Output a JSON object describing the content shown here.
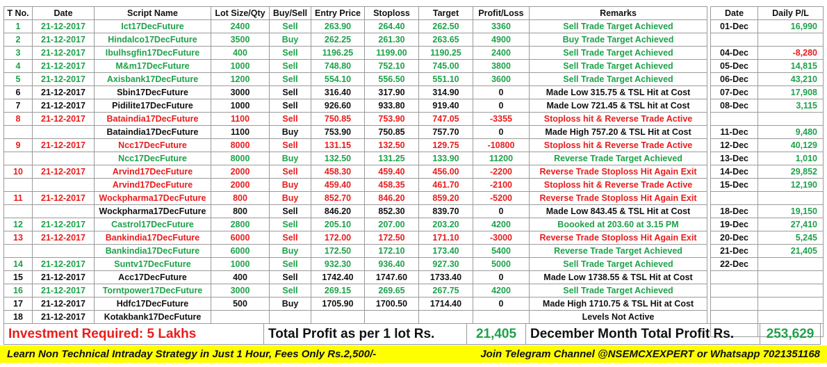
{
  "main_headers": [
    "T No.",
    "Date",
    "Script Name",
    "Lot Size/Qty",
    "Buy/Sell",
    "Entry Price",
    "Stoploss",
    "Target",
    "Profit/Loss",
    "Remarks"
  ],
  "side_headers": [
    "Date",
    "Daily P/L"
  ],
  "colors": {
    "green": "#1ea24a",
    "red": "#ea1c1c",
    "black": "#111111",
    "banner": "#ffff00"
  },
  "rows": [
    {
      "c": "g",
      "t": "1",
      "d": "21-12-2017",
      "s": "Ict17DecFuture",
      "q": "2400",
      "bs": "Sell",
      "e": "263.90",
      "sl": "264.40",
      "tg": "262.50",
      "pl": "3360",
      "rm": "Sell Trade Target Achieved"
    },
    {
      "c": "g",
      "t": "2",
      "d": "21-12-2017",
      "s": "Hindalco17DecFuture",
      "q": "3500",
      "bs": "Buy",
      "e": "262.25",
      "sl": "261.30",
      "tg": "263.65",
      "pl": "4900",
      "rm": "Buy Trade Target Achieved"
    },
    {
      "c": "g",
      "t": "3",
      "d": "21-12-2017",
      "s": "Ibulhsgfin17DecFuture",
      "q": "400",
      "bs": "Sell",
      "e": "1196.25",
      "sl": "1199.00",
      "tg": "1190.25",
      "pl": "2400",
      "rm": "Sell Trade Target Achieved"
    },
    {
      "c": "g",
      "t": "4",
      "d": "21-12-2017",
      "s": "M&m17DecFuture",
      "q": "1000",
      "bs": "Sell",
      "e": "748.80",
      "sl": "752.10",
      "tg": "745.00",
      "pl": "3800",
      "rm": "Sell Trade Target Achieved"
    },
    {
      "c": "g",
      "t": "5",
      "d": "21-12-2017",
      "s": "Axisbank17DecFuture",
      "q": "1200",
      "bs": "Sell",
      "e": "554.10",
      "sl": "556.50",
      "tg": "551.10",
      "pl": "3600",
      "rm": "Sell Trade Target Achieved"
    },
    {
      "c": "k",
      "t": "6",
      "d": "21-12-2017",
      "s": "Sbin17DecFuture",
      "q": "3000",
      "bs": "Sell",
      "e": "316.40",
      "sl": "317.90",
      "tg": "314.90",
      "pl": "0",
      "rm": "Made Low 315.75 & TSL Hit at Cost"
    },
    {
      "c": "k",
      "t": "7",
      "d": "21-12-2017",
      "s": "Pidilite17DecFuture",
      "q": "1000",
      "bs": "Sell",
      "e": "926.60",
      "sl": "933.80",
      "tg": "919.40",
      "pl": "0",
      "rm": "Made Low 721.45 & TSL hit at Cost"
    },
    {
      "c": "r",
      "t": "8",
      "d": "21-12-2017",
      "s": "Bataindia17DecFuture",
      "q": "1100",
      "bs": "Sell",
      "e": "750.85",
      "sl": "753.90",
      "tg": "747.05",
      "pl": "-3355",
      "rm": "Stoploss hit & Reverse Trade Active"
    },
    {
      "c": "k",
      "t": "",
      "d": "",
      "s": "Bataindia17DecFuture",
      "q": "1100",
      "bs": "Buy",
      "e": "753.90",
      "sl": "750.85",
      "tg": "757.70",
      "pl": "0",
      "rm": "Made High 757.20 & TSL Hit at Cost"
    },
    {
      "c": "r",
      "t": "9",
      "d": "21-12-2017",
      "s": "Ncc17DecFuture",
      "q": "8000",
      "bs": "Sell",
      "e": "131.15",
      "sl": "132.50",
      "tg": "129.75",
      "pl": "-10800",
      "rm": "Stoploss hit & Reverse Trade Active"
    },
    {
      "c": "g",
      "t": "",
      "d": "",
      "s": "Ncc17DecFuture",
      "q": "8000",
      "bs": "Buy",
      "e": "132.50",
      "sl": "131.25",
      "tg": "133.90",
      "pl": "11200",
      "rm": "Reverse Trade Target Achieved"
    },
    {
      "c": "r",
      "t": "10",
      "d": "21-12-2017",
      "s": "Arvind17DecFuture",
      "q": "2000",
      "bs": "Sell",
      "e": "458.30",
      "sl": "459.40",
      "tg": "456.00",
      "pl": "-2200",
      "rm": "Reverse Trade Stoploss Hit Again Exit"
    },
    {
      "c": "r",
      "t": "",
      "d": "",
      "s": "Arvind17DecFuture",
      "q": "2000",
      "bs": "Buy",
      "e": "459.40",
      "sl": "458.35",
      "tg": "461.70",
      "pl": "-2100",
      "rm": "Stoploss hit & Reverse Trade Active"
    },
    {
      "c": "r",
      "t": "11",
      "d": "21-12-2017",
      "s": "Wockpharma17DecFuture",
      "q": "800",
      "bs": "Buy",
      "e": "852.70",
      "sl": "846.20",
      "tg": "859.20",
      "pl": "-5200",
      "rm": "Reverse Trade Stoploss Hit Again Exit"
    },
    {
      "c": "k",
      "t": "",
      "d": "",
      "s": "Wockpharma17DecFuture",
      "q": "800",
      "bs": "Sell",
      "e": "846.20",
      "sl": "852.30",
      "tg": "839.70",
      "pl": "0",
      "rm": "Made Low 843.45 & TSL Hit at Cost"
    },
    {
      "c": "g",
      "t": "12",
      "d": "21-12-2017",
      "s": "Castrol17DecFuture",
      "q": "2800",
      "bs": "Sell",
      "e": "205.10",
      "sl": "207.00",
      "tg": "203.20",
      "pl": "4200",
      "rm": "Boooked at 203.60 at 3.15 PM"
    },
    {
      "c": "r",
      "t": "13",
      "d": "21-12-2017",
      "s": "Bankindia17DecFuture",
      "q": "6000",
      "bs": "Sell",
      "e": "172.00",
      "sl": "172.50",
      "tg": "171.10",
      "pl": "-3000",
      "rm": "Reverse Trade Stoploss Hit Again Exit"
    },
    {
      "c": "g",
      "t": "",
      "d": "",
      "s": "Bankindia17DecFuture",
      "q": "6000",
      "bs": "Buy",
      "e": "172.50",
      "sl": "172.10",
      "tg": "173.40",
      "pl": "5400",
      "rm": "Reverse Trade Target Achieved"
    },
    {
      "c": "g",
      "t": "14",
      "d": "21-12-2017",
      "s": "Suntv17DecFuture",
      "q": "1000",
      "bs": "Sell",
      "e": "932.30",
      "sl": "936.40",
      "tg": "927.30",
      "pl": "5000",
      "rm": "Sell Trade Target Achieved"
    },
    {
      "c": "k",
      "t": "15",
      "d": "21-12-2017",
      "s": "Acc17DecFuture",
      "q": "400",
      "bs": "Sell",
      "e": "1742.40",
      "sl": "1747.60",
      "tg": "1733.40",
      "pl": "0",
      "rm": "Made Low 1738.55 & TSL Hit at Cost"
    },
    {
      "c": "g",
      "t": "16",
      "d": "21-12-2017",
      "s": "Torntpower17DecFuture",
      "q": "3000",
      "bs": "Sell",
      "e": "269.15",
      "sl": "269.65",
      "tg": "267.75",
      "pl": "4200",
      "rm": "Sell Trade Target Achieved"
    },
    {
      "c": "k",
      "t": "17",
      "d": "21-12-2017",
      "s": "Hdfc17DecFuture",
      "q": "500",
      "bs": "Buy",
      "e": "1705.90",
      "sl": "1700.50",
      "tg": "1714.40",
      "pl": "0",
      "rm": "Made High 1710.75 & TSL Hit at Cost"
    },
    {
      "c": "k",
      "t": "18",
      "d": "21-12-2017",
      "s": "Kotakbank17DecFuture",
      "q": "",
      "bs": "",
      "e": "",
      "sl": "",
      "tg": "",
      "pl": "",
      "rm": "Levels Not Active"
    }
  ],
  "daily": [
    {
      "date": "01-Dec",
      "pl": "16,990",
      "c": "g"
    },
    {
      "date": "",
      "pl": "",
      "c": "k"
    },
    {
      "date": "04-Dec",
      "pl": "-8,280",
      "c": "r"
    },
    {
      "date": "05-Dec",
      "pl": "14,815",
      "c": "g"
    },
    {
      "date": "06-Dec",
      "pl": "43,210",
      "c": "g"
    },
    {
      "date": "07-Dec",
      "pl": "17,908",
      "c": "g"
    },
    {
      "date": "08-Dec",
      "pl": "3,115",
      "c": "g"
    },
    {
      "date": "",
      "pl": "",
      "c": "k"
    },
    {
      "date": "11-Dec",
      "pl": "9,480",
      "c": "g"
    },
    {
      "date": "12-Dec",
      "pl": "40,129",
      "c": "g"
    },
    {
      "date": "13-Dec",
      "pl": "1,010",
      "c": "g"
    },
    {
      "date": "14-Dec",
      "pl": "29,852",
      "c": "g"
    },
    {
      "date": "15-Dec",
      "pl": "12,190",
      "c": "g"
    },
    {
      "date": "",
      "pl": "",
      "c": "k"
    },
    {
      "date": "18-Dec",
      "pl": "19,150",
      "c": "g"
    },
    {
      "date": "19-Dec",
      "pl": "27,410",
      "c": "g"
    },
    {
      "date": "20-Dec",
      "pl": "5,245",
      "c": "g"
    },
    {
      "date": "21-Dec",
      "pl": "21,405",
      "c": "g"
    },
    {
      "date": "22-Dec",
      "pl": "",
      "c": "k"
    },
    {
      "date": "",
      "pl": "",
      "c": "k"
    },
    {
      "date": "",
      "pl": "",
      "c": "k"
    },
    {
      "date": "",
      "pl": "",
      "c": "k"
    },
    {
      "date": "",
      "pl": "",
      "c": "k"
    },
    {
      "date": "",
      "pl": "",
      "c": "k"
    }
  ],
  "summary": {
    "investment": "Investment Required: 5 Lakhs",
    "total_label": "Total Profit as per 1 lot Rs.",
    "total_value": "21,405",
    "month_label": "December Month Total Profit Rs.",
    "month_value": "253,629"
  },
  "banner": {
    "left": "Learn Non Technical Intraday Strategy in Just 1 Hour, Fees Only Rs.2,500/-",
    "right": "Join Telegram Channel @NSEMCXEXPERT or Whatsapp 7021351168"
  }
}
